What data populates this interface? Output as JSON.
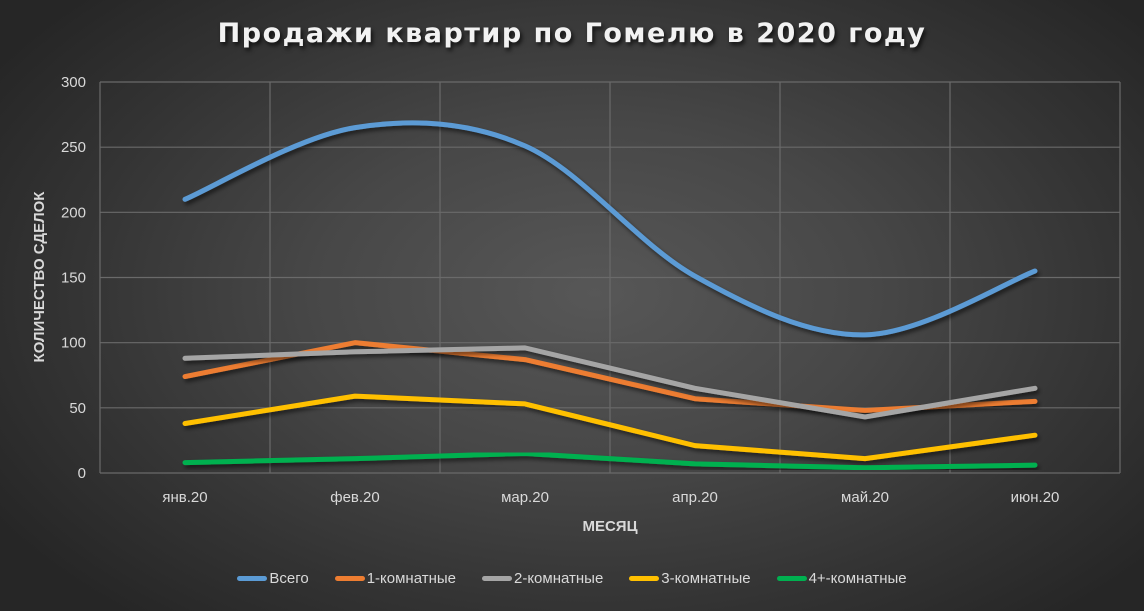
{
  "chart_data": {
    "type": "line",
    "title": "Продажи квартир по Гомелю в 2020 году",
    "xlabel": "МЕСЯЦ",
    "ylabel": "КОЛИЧЕСТВО СДЕЛОК",
    "ylim": [
      0,
      300
    ],
    "yticks": [
      0,
      50,
      100,
      150,
      200,
      250,
      300
    ],
    "categories": [
      "янв.20",
      "фев.20",
      "мар.20",
      "апр.20",
      "май.20",
      "июн.20"
    ],
    "grid": true,
    "legend_position": "bottom",
    "smoothed": true,
    "series": [
      {
        "name": "Всего",
        "color": "#5b9bd5",
        "values": [
          210,
          265,
          251,
          151,
          106,
          155
        ]
      },
      {
        "name": "1-комнатные",
        "color": "#ed7d31",
        "values": [
          74,
          100,
          87,
          57,
          48,
          55
        ]
      },
      {
        "name": "2-комнатные",
        "color": "#a5a5a5",
        "values": [
          88,
          93,
          96,
          65,
          43,
          65
        ]
      },
      {
        "name": "3-комнатные",
        "color": "#ffc000",
        "values": [
          38,
          59,
          53,
          21,
          11,
          29
        ]
      },
      {
        "name": "4+-комнатные",
        "color": "#00b050",
        "values": [
          8,
          11,
          15,
          7,
          4,
          6
        ]
      }
    ]
  }
}
